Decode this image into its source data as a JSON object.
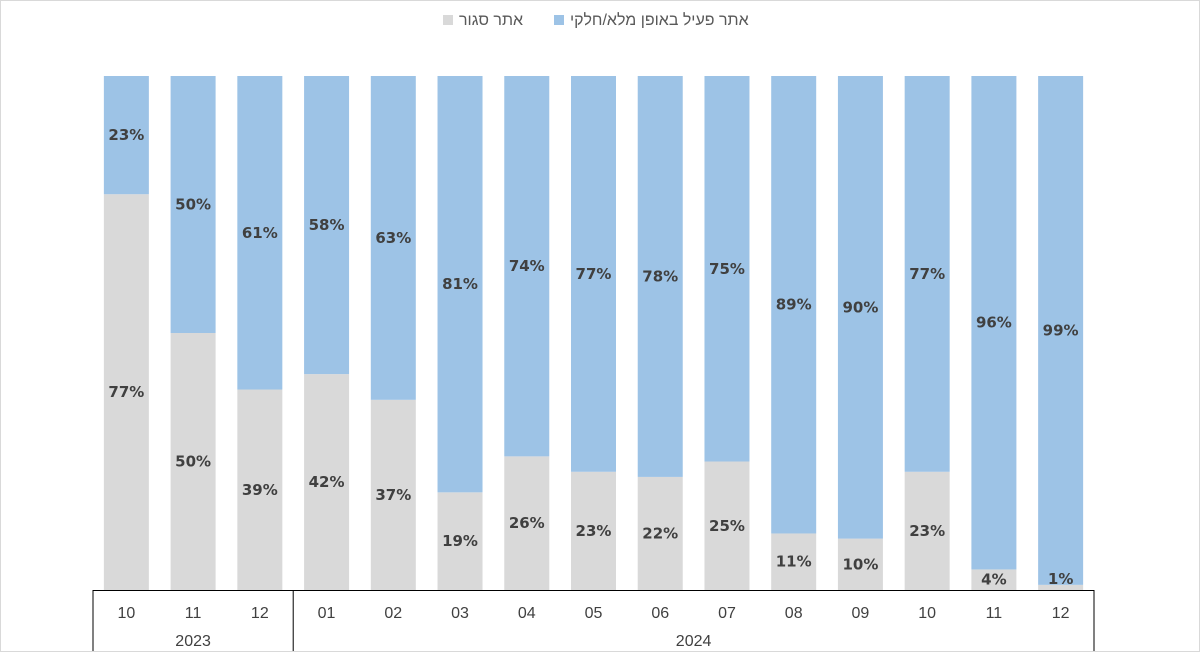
{
  "chart_data": {
    "type": "bar",
    "stacked": true,
    "percent_stacked": true,
    "title": "",
    "xlabel": "",
    "ylabel": "",
    "ylim": [
      0,
      100
    ],
    "grid": false,
    "legend_position": "top",
    "categories": [
      "10",
      "11",
      "12",
      "01",
      "02",
      "03",
      "04",
      "05",
      "06",
      "07",
      "08",
      "09",
      "10",
      "11",
      "12"
    ],
    "category_groups": [
      {
        "label": "2023",
        "count": 3
      },
      {
        "label": "2024",
        "count": 12
      }
    ],
    "series": [
      {
        "name": "אתר סגור",
        "color": "#d9d9d9",
        "values": [
          77,
          50,
          39,
          42,
          37,
          19,
          26,
          23,
          22,
          25,
          11,
          10,
          23,
          4,
          1
        ],
        "labels": [
          "77%",
          "50%",
          "39%",
          "42%",
          "37%",
          "19%",
          "26%",
          "23%",
          "22%",
          "25%",
          "11%",
          "10%",
          "23%",
          "4%",
          "1%"
        ]
      },
      {
        "name": "אתר פעיל באופן מלא/חלקי",
        "color": "#9dc3e6",
        "values": [
          23,
          50,
          61,
          58,
          63,
          81,
          74,
          77,
          78,
          75,
          89,
          90,
          77,
          96,
          99
        ],
        "labels": [
          "23%",
          "50%",
          "61%",
          "58%",
          "63%",
          "81%",
          "74%",
          "77%",
          "78%",
          "75%",
          "89%",
          "90%",
          "77%",
          "96%",
          "99%"
        ]
      }
    ],
    "legend_order": [
      1,
      0
    ]
  }
}
